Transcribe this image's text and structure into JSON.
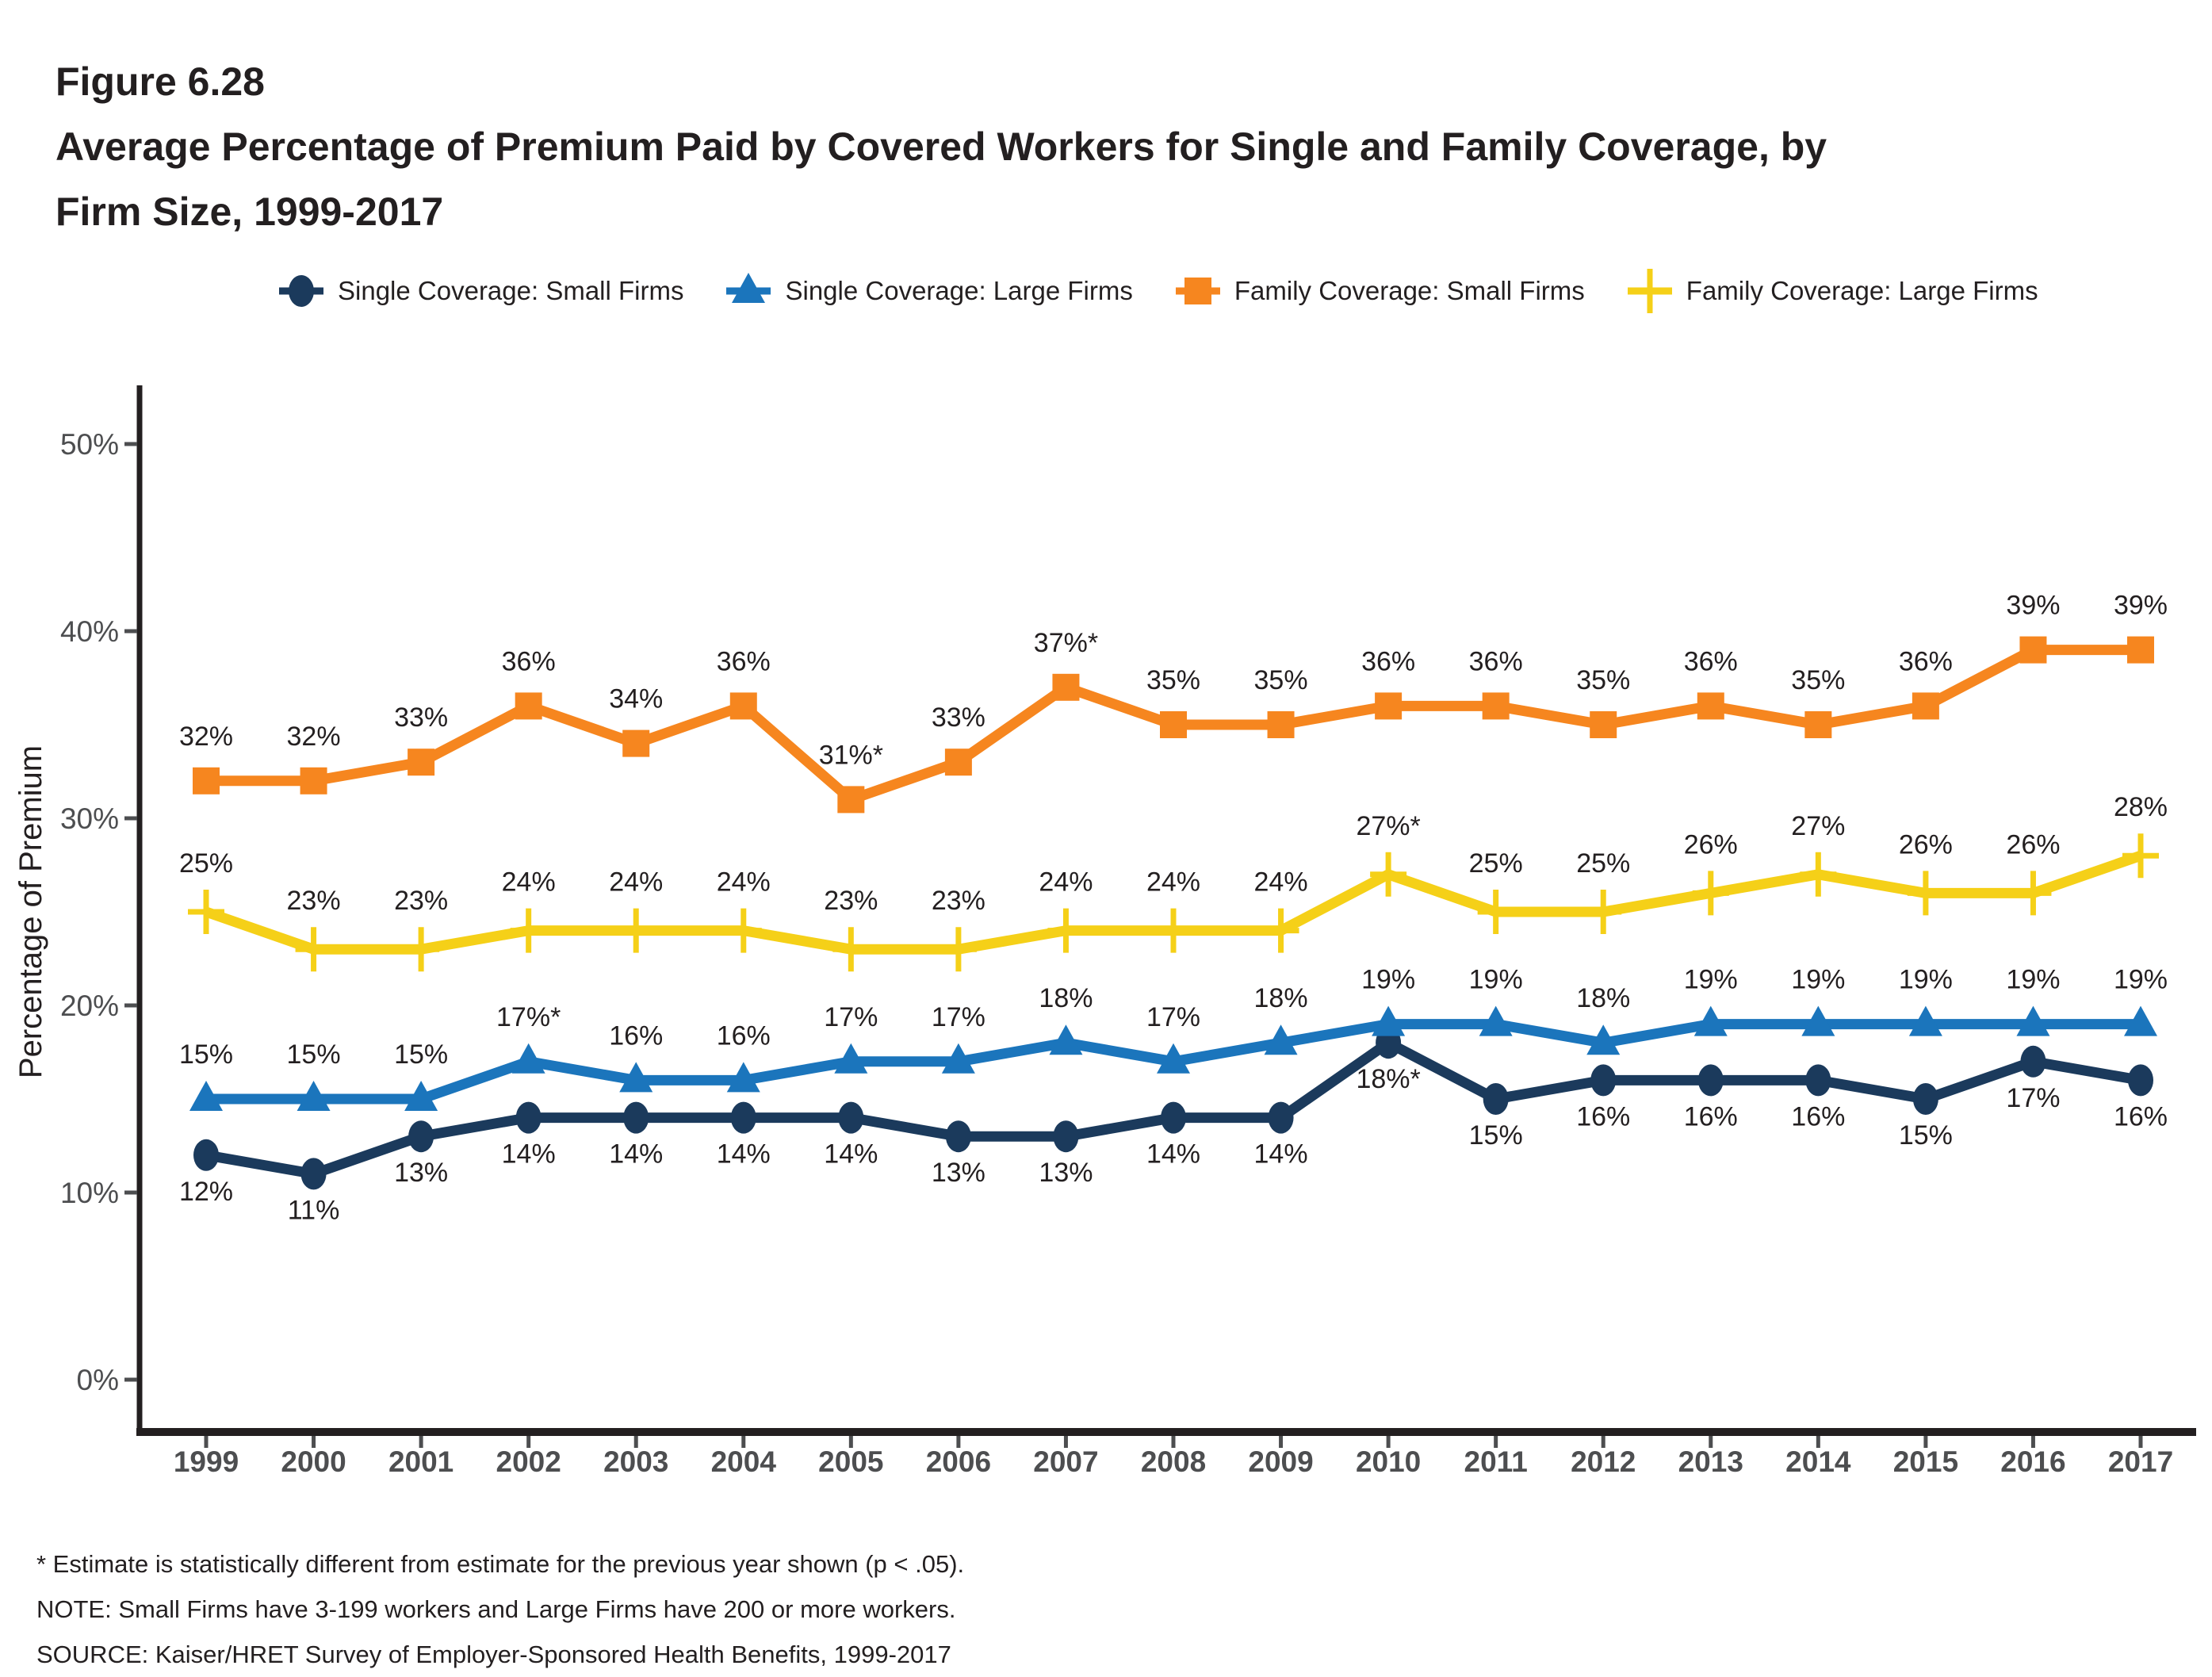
{
  "header": {
    "figure_label": "Figure 6.28",
    "title_line1": "Average Percentage of Premium Paid by Covered Workers for Single and Family Coverage, by",
    "title_line2": "Firm Size, 1999-2017"
  },
  "footnotes": {
    "asterisk": "* Estimate is statistically different from estimate for the previous year shown (p < .05).",
    "note": "NOTE: Small Firms have 3-199 workers and Large Firms have 200 or more workers.",
    "source": "SOURCE: Kaiser/HRET Survey of Employer-Sponsored Health Benefits, 1999-2017"
  },
  "colors": {
    "axis": "#231F20",
    "ytick_label": "#4D4E50",
    "xtick_label": "#4D4E50",
    "data_label": "#231F20"
  },
  "chart_data": {
    "type": "line",
    "title": "Average Percentage of Premium Paid by Covered Workers for Single and Family Coverage, by Firm Size, 1999-2017",
    "xlabel": "",
    "ylabel": "Percentage of Premium",
    "x": [
      "1999",
      "2000",
      "2001",
      "2002",
      "2003",
      "2004",
      "2005",
      "2006",
      "2007",
      "2008",
      "2009",
      "2010",
      "2011",
      "2012",
      "2013",
      "2014",
      "2015",
      "2016",
      "2017"
    ],
    "ylim": [
      0,
      50
    ],
    "yticks": [
      0,
      10,
      20,
      30,
      40,
      50
    ],
    "ytick_suffix": "%",
    "grid": false,
    "legend_position": "top",
    "series": [
      {
        "name": "Single Coverage: Small Firms",
        "color": "#1B3A5C",
        "marker": "circle",
        "label_position": "below",
        "values": [
          12,
          11,
          13,
          14,
          14,
          14,
          14,
          13,
          13,
          14,
          14,
          18,
          15,
          16,
          16,
          16,
          15,
          17,
          16
        ],
        "labels": [
          "12%",
          "11%",
          "13%",
          "14%",
          "14%",
          "14%",
          "14%",
          "13%",
          "13%",
          "14%",
          "14%",
          "18%*",
          "15%",
          "16%",
          "16%",
          "16%",
          "15%",
          "17%",
          "16%"
        ]
      },
      {
        "name": "Single Coverage: Large Firms",
        "color": "#1B75BC",
        "marker": "triangle",
        "label_position": "above",
        "values": [
          15,
          15,
          15,
          17,
          16,
          16,
          17,
          17,
          18,
          17,
          18,
          19,
          19,
          18,
          19,
          19,
          19,
          19,
          19
        ],
        "labels": [
          "15%",
          "15%",
          "15%",
          "17%*",
          "16%",
          "16%",
          "17%",
          "17%",
          "18%",
          "17%",
          "18%",
          "19%",
          "19%",
          "18%",
          "19%",
          "19%",
          "19%",
          "19%",
          "19%"
        ]
      },
      {
        "name": "Family Coverage: Small Firms",
        "color": "#F6861F",
        "marker": "square",
        "label_position": "above",
        "values": [
          32,
          32,
          33,
          36,
          34,
          36,
          31,
          33,
          37,
          35,
          35,
          36,
          36,
          35,
          36,
          35,
          36,
          39,
          39
        ],
        "labels": [
          "32%",
          "32%",
          "33%",
          "36%",
          "34%",
          "36%",
          "31%*",
          "33%",
          "37%*",
          "35%",
          "35%",
          "36%",
          "36%",
          "35%",
          "36%",
          "35%",
          "36%",
          "39%",
          "39%"
        ]
      },
      {
        "name": "Family Coverage: Large Firms",
        "color": "#F5D018",
        "marker": "plus",
        "label_position": "above",
        "values": [
          25,
          23,
          23,
          24,
          24,
          24,
          23,
          23,
          24,
          24,
          24,
          27,
          25,
          25,
          26,
          27,
          26,
          26,
          28
        ],
        "labels": [
          "25%",
          "23%",
          "23%",
          "24%",
          "24%",
          "24%",
          "23%",
          "23%",
          "24%",
          "24%",
          "24%",
          "27%*",
          "25%",
          "25%",
          "26%",
          "27%",
          "26%",
          "26%",
          "28%"
        ]
      }
    ]
  }
}
